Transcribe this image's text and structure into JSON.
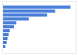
{
  "chart_data": {
    "type": "bar",
    "orientation": "horizontal",
    "categories": [
      null,
      null,
      null,
      null,
      null,
      null,
      null,
      null,
      null,
      null,
      null
    ],
    "values": [
      93,
      72,
      61,
      36,
      19,
      16,
      10,
      8.5,
      7,
      6,
      4
    ],
    "color": "#4a7fdb",
    "xlim": [
      0,
      100
    ],
    "tick_labels": false,
    "grid": false
  }
}
